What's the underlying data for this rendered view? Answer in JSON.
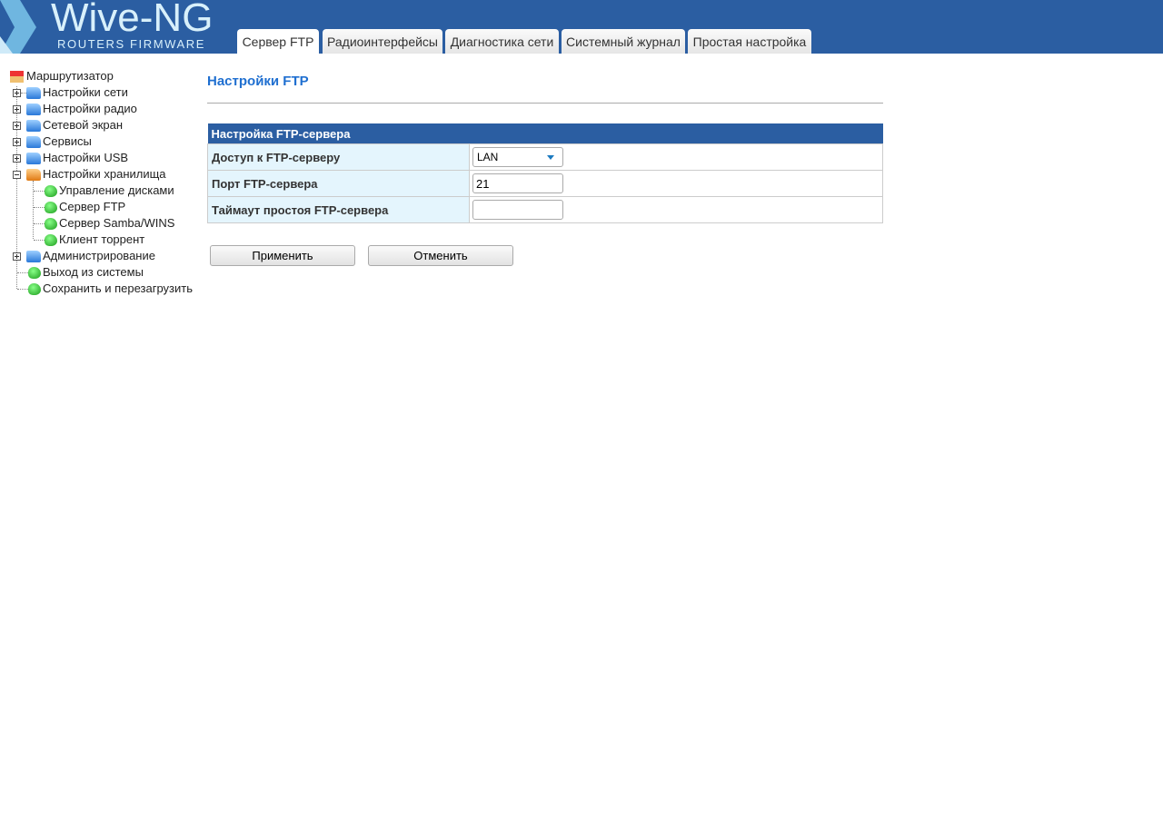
{
  "header": {
    "logo_title": "Wive-NG",
    "logo_subtitle": "ROUTERS FIRMWARE",
    "tabs": [
      {
        "label": "Сервер FTP",
        "active": true
      },
      {
        "label": "Радиоинтерфейсы"
      },
      {
        "label": "Диагностика сети"
      },
      {
        "label": "Системный журнал"
      },
      {
        "label": "Простая настройка"
      }
    ]
  },
  "sidebar": {
    "root": "Маршрутизатор",
    "items": [
      {
        "label": "Настройки сети",
        "icon": "folder-icon"
      },
      {
        "label": "Настройки радио",
        "icon": "folder-icon"
      },
      {
        "label": "Сетевой экран",
        "icon": "folder-icon"
      },
      {
        "label": "Сервисы",
        "icon": "folder-icon"
      },
      {
        "label": "Настройки USB",
        "icon": "folder-icon"
      },
      {
        "label": "Настройки хранилища",
        "icon": "folder-open-icon",
        "expanded": true
      },
      {
        "label": "Управление дисками",
        "icon": "leaf-icon"
      },
      {
        "label": "Сервер FTP",
        "icon": "leaf-icon"
      },
      {
        "label": "Сервер Samba/WINS",
        "icon": "leaf-icon"
      },
      {
        "label": "Клиент торрент",
        "icon": "leaf-icon"
      },
      {
        "label": "Администрирование",
        "icon": "folder-icon"
      },
      {
        "label": "Выход из системы",
        "icon": "leaf-icon"
      },
      {
        "label": "Сохранить и перезагрузить",
        "icon": "leaf-icon"
      }
    ]
  },
  "main": {
    "title": "Настройки FTP",
    "section": "Настройка FTP-сервера",
    "rows": [
      {
        "label": "Доступ к FTP-серверу",
        "value": "LAN"
      },
      {
        "label": "Порт FTP-сервера",
        "value": "21"
      },
      {
        "label": "Таймаут простоя FTP-сервера",
        "value": ""
      }
    ],
    "apply": "Применить",
    "cancel": "Отменить"
  },
  "colors": {
    "header": "#2b5ea2",
    "title": "#1f6fd0",
    "label_bg": "#e4f5fd"
  }
}
